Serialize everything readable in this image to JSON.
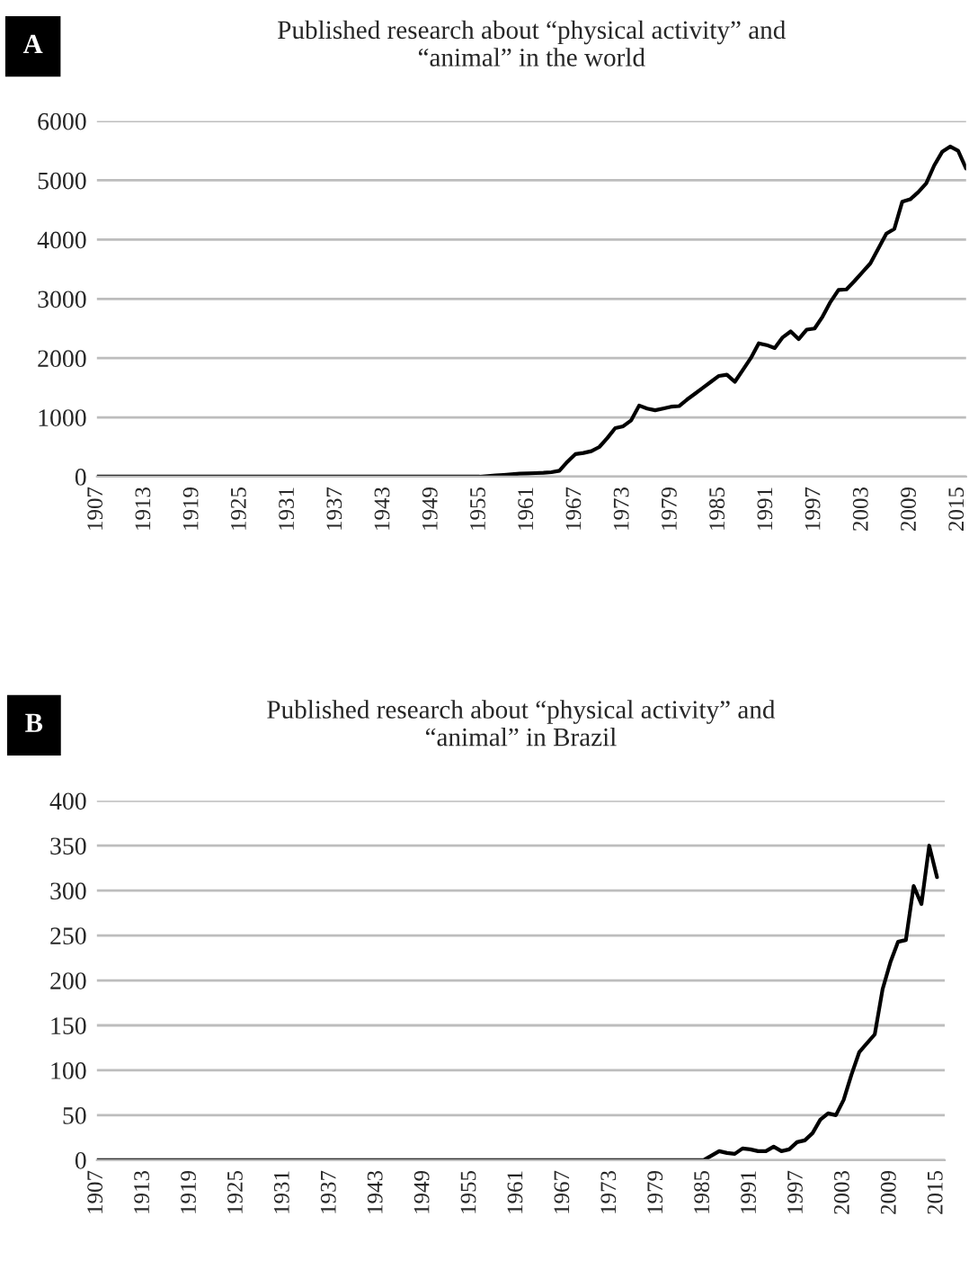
{
  "chart_data": [
    {
      "type": "line",
      "title": "Published research about “physical activity” and\n“animal” in the world",
      "annotations": [
        "A"
      ],
      "grid": "y",
      "series": [
        {
          "color": "#000000",
          "x": [
            1907,
            1955,
            1956,
            1957,
            1958,
            1959,
            1960,
            1961,
            1962,
            1963,
            1964,
            1965,
            1966,
            1967,
            1968,
            1969,
            1970,
            1971,
            1972,
            1973,
            1974,
            1975,
            1976,
            1977,
            1978,
            1979,
            1980,
            1981,
            1982,
            1983,
            1984,
            1985,
            1986,
            1987,
            1988,
            1989,
            1990,
            1991,
            1992,
            1993,
            1994,
            1995,
            1996,
            1997,
            1998,
            1999,
            2000,
            2001,
            2002,
            2003,
            2004,
            2005,
            2006,
            2007,
            2008,
            2009,
            2010,
            2011,
            2012,
            2013,
            2014,
            2015,
            2016
          ],
          "values": [
            0,
            0,
            10,
            20,
            30,
            40,
            50,
            55,
            60,
            65,
            75,
            100,
            250,
            380,
            400,
            430,
            500,
            650,
            820,
            850,
            950,
            1200,
            1150,
            1120,
            1150,
            1180,
            1190,
            1300,
            1400,
            1500,
            1600,
            1700,
            1720,
            1600,
            1800,
            2000,
            2250,
            2220,
            2170,
            2350,
            2450,
            2320,
            2480,
            2500,
            2700,
            2950,
            3150,
            3160,
            3300,
            3450,
            3600,
            3850,
            4100,
            4180,
            4640,
            4680,
            4800,
            4950,
            5250,
            5480,
            5570,
            5500,
            5200
          ]
        }
      ],
      "xlim": [
        1907,
        2016
      ],
      "xticks": [
        1907,
        1913,
        1919,
        1925,
        1931,
        1937,
        1943,
        1949,
        1955,
        1961,
        1967,
        1973,
        1979,
        1985,
        1991,
        1997,
        2003,
        2009,
        2015
      ],
      "ylim": [
        0,
        6000
      ],
      "yticks": [
        0,
        1000,
        2000,
        3000,
        4000,
        5000,
        6000
      ]
    },
    {
      "type": "line",
      "title": "Published research about “physical activity” and\n“animal” in Brazil",
      "annotations": [
        "B"
      ],
      "grid": "y",
      "series": [
        {
          "color": "#000000",
          "x": [
            1907,
            1985,
            1986,
            1987,
            1988,
            1989,
            1990,
            1991,
            1992,
            1993,
            1994,
            1995,
            1996,
            1997,
            1998,
            1999,
            2000,
            2001,
            2002,
            2003,
            2004,
            2005,
            2006,
            2007,
            2008,
            2009,
            2010,
            2011,
            2012,
            2013,
            2014,
            2015
          ],
          "values": [
            0,
            0,
            5,
            10,
            8,
            7,
            13,
            12,
            10,
            10,
            15,
            10,
            12,
            20,
            22,
            30,
            45,
            52,
            50,
            67,
            95,
            120,
            130,
            140,
            190,
            220,
            243,
            245,
            305,
            285,
            350,
            315
          ]
        }
      ],
      "xlim": [
        1907,
        2016
      ],
      "xticks": [
        1907,
        1913,
        1919,
        1925,
        1931,
        1937,
        1943,
        1949,
        1955,
        1961,
        1967,
        1973,
        1979,
        1985,
        1991,
        1997,
        2003,
        2009,
        2015
      ],
      "ylim": [
        0,
        400
      ],
      "yticks": [
        0,
        50,
        100,
        150,
        200,
        250,
        300,
        350,
        400
      ]
    }
  ]
}
